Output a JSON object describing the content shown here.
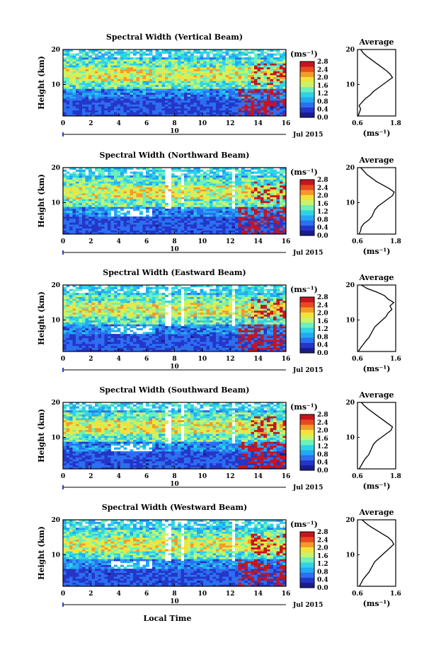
{
  "figure": {
    "xlabel": "Local Time",
    "date_label": "Jul 2015",
    "day_label": "10",
    "average_title": "Average",
    "colorbar_unit": "(ms⁻¹)",
    "colorbar_ticks": [
      "0.0",
      "0.4",
      "0.8",
      "1.2",
      "1.6",
      "2.0",
      "2.4",
      "2.8"
    ],
    "palette": [
      "#1b1b8f",
      "#2436c8",
      "#2c6ff0",
      "#22a9f4",
      "#2fd3e6",
      "#6ef0b8",
      "#c8f46a",
      "#f4e23a",
      "#f59a2a",
      "#e84a1e",
      "#c8141e"
    ]
  },
  "chart_data": [
    {
      "type": "heatmap",
      "title": "Spectral Width (Vertical Beam)",
      "ylabel": "Height (km)",
      "xlim": [
        0,
        16
      ],
      "ylim": [
        1,
        20
      ],
      "xticks": [
        "0",
        "2",
        "4",
        "6",
        "8",
        "10",
        "12",
        "14",
        "16"
      ],
      "yticks": [
        "10",
        "20"
      ],
      "colorbar": {
        "label": "(ms⁻¹)",
        "range": [
          0.0,
          2.8
        ],
        "ticks": [
          "0.0",
          "0.4",
          "0.8",
          "1.2",
          "1.6",
          "2.0",
          "2.4",
          "2.8"
        ]
      },
      "profile": {
        "title": "Average",
        "xlabel": "(ms⁻¹)",
        "xlim": [
          0.6,
          1.8
        ],
        "xticks": [
          "0.6",
          "1.8"
        ],
        "ylim": [
          1,
          20
        ],
        "yticks": [
          "10",
          "20"
        ],
        "height_km": [
          1,
          2,
          3,
          4,
          5,
          6,
          7,
          8,
          9,
          10,
          11,
          12,
          13,
          14,
          15,
          16,
          17,
          18,
          19,
          20
        ],
        "width": [
          0.62,
          0.66,
          0.7,
          0.65,
          0.75,
          0.85,
          1.0,
          1.1,
          1.25,
          1.4,
          1.55,
          1.7,
          1.62,
          1.5,
          1.35,
          1.2,
          1.05,
          0.9,
          0.78,
          0.7
        ]
      }
    },
    {
      "type": "heatmap",
      "title": "Spectral Width (Northward Beam)",
      "ylabel": "Height (km)",
      "xlim": [
        0,
        16
      ],
      "ylim": [
        1,
        20
      ],
      "xticks": [
        "0",
        "2",
        "4",
        "6",
        "8",
        "10",
        "12",
        "14",
        "16"
      ],
      "yticks": [
        "10",
        "20"
      ],
      "colorbar": {
        "label": "(ms⁻¹)",
        "range": [
          0.0,
          2.8
        ],
        "ticks": [
          "0.0",
          "0.4",
          "0.8",
          "1.2",
          "1.6",
          "2.0",
          "2.4",
          "2.8"
        ]
      },
      "profile": {
        "title": "Average",
        "xlabel": "(ms⁻¹)",
        "xlim": [
          0.6,
          1.8
        ],
        "xticks": [
          "0.6",
          "1.8"
        ],
        "ylim": [
          1,
          20
        ],
        "yticks": [
          "10",
          "20"
        ],
        "height_km": [
          1,
          2,
          3,
          4,
          5,
          6,
          7,
          8,
          9,
          10,
          11,
          12,
          13,
          14,
          15,
          16,
          17,
          18,
          19,
          20
        ],
        "width": [
          0.65,
          0.7,
          0.72,
          0.8,
          0.95,
          1.05,
          1.1,
          1.15,
          1.25,
          1.4,
          1.55,
          1.7,
          1.75,
          1.6,
          1.4,
          1.2,
          1.05,
          0.9,
          0.8,
          0.7
        ]
      }
    },
    {
      "type": "heatmap",
      "title": "Spectral Width (Eastward Beam)",
      "ylabel": "Height (km)",
      "xlim": [
        0,
        16
      ],
      "ylim": [
        1,
        20
      ],
      "xticks": [
        "0",
        "2",
        "4",
        "6",
        "8",
        "10",
        "12",
        "14",
        "16"
      ],
      "yticks": [
        "10",
        "20"
      ],
      "colorbar": {
        "label": "(ms⁻¹)",
        "range": [
          0.0,
          2.8
        ],
        "ticks": [
          "0.0",
          "0.4",
          "0.8",
          "1.2",
          "1.6",
          "2.0",
          "2.4",
          "2.8"
        ]
      },
      "profile": {
        "title": "Average",
        "xlabel": "(ms⁻¹)",
        "xlim": [
          0.6,
          1.6
        ],
        "xticks": [
          "0.6",
          "1.6"
        ],
        "ylim": [
          1,
          20
        ],
        "yticks": [
          "10",
          "20"
        ],
        "height_km": [
          1,
          2,
          3,
          4,
          5,
          6,
          7,
          8,
          9,
          10,
          11,
          12,
          13,
          14,
          15,
          16,
          17,
          18,
          19,
          20
        ],
        "width": [
          0.62,
          0.68,
          0.75,
          0.82,
          0.9,
          0.95,
          1.0,
          1.05,
          1.15,
          1.25,
          1.35,
          1.4,
          1.5,
          1.45,
          1.55,
          1.4,
          1.3,
          1.1,
          0.85,
          0.7
        ]
      }
    },
    {
      "type": "heatmap",
      "title": "Spectral Width (Southward Beam)",
      "ylabel": "Height (km)",
      "xlim": [
        0,
        16
      ],
      "ylim": [
        1,
        20
      ],
      "xticks": [
        "0",
        "2",
        "4",
        "6",
        "8",
        "10",
        "12",
        "14",
        "16"
      ],
      "yticks": [
        "10",
        "20"
      ],
      "colorbar": {
        "label": "(ms⁻¹)",
        "range": [
          0.0,
          2.8
        ],
        "ticks": [
          "0.0",
          "0.4",
          "0.8",
          "1.2",
          "1.6",
          "2.0",
          "2.4",
          "2.8"
        ]
      },
      "profile": {
        "title": "Average",
        "xlabel": "(ms⁻¹)",
        "xlim": [
          0.6,
          1.8
        ],
        "xticks": [
          "0.6",
          "1.8"
        ],
        "ylim": [
          1,
          20
        ],
        "yticks": [
          "10",
          "20"
        ],
        "height_km": [
          1,
          2,
          3,
          4,
          5,
          6,
          7,
          8,
          9,
          10,
          11,
          12,
          13,
          14,
          15,
          16,
          17,
          18,
          19,
          20
        ],
        "width": [
          0.65,
          0.72,
          0.78,
          0.85,
          0.95,
          1.0,
          1.05,
          1.1,
          1.2,
          1.35,
          1.5,
          1.65,
          1.7,
          1.55,
          1.4,
          1.25,
          1.1,
          0.95,
          0.82,
          0.72
        ]
      }
    },
    {
      "type": "heatmap",
      "title": "Spectral Width (Westward Beam)",
      "ylabel": "Height (km)",
      "xlim": [
        0,
        16
      ],
      "ylim": [
        1,
        20
      ],
      "xticks": [
        "0",
        "2",
        "4",
        "6",
        "8",
        "10",
        "12",
        "14",
        "16"
      ],
      "yticks": [
        "10",
        "20"
      ],
      "colorbar": {
        "label": "(ms⁻¹)",
        "range": [
          0.0,
          2.8
        ],
        "ticks": [
          "0.0",
          "0.4",
          "0.8",
          "1.2",
          "1.6",
          "2.0",
          "2.4",
          "2.8"
        ]
      },
      "profile": {
        "title": "Average",
        "xlabel": "(ms⁻¹)",
        "xlim": [
          0.6,
          1.6
        ],
        "xticks": [
          "0.6",
          "1.6"
        ],
        "ylim": [
          1,
          20
        ],
        "yticks": [
          "10",
          "20"
        ],
        "height_km": [
          1,
          2,
          3,
          4,
          5,
          6,
          7,
          8,
          9,
          10,
          11,
          12,
          13,
          14,
          15,
          16,
          17,
          18,
          19,
          20
        ],
        "width": [
          0.65,
          0.7,
          0.75,
          0.82,
          0.9,
          0.95,
          1.0,
          1.05,
          1.15,
          1.25,
          1.35,
          1.45,
          1.55,
          1.5,
          1.4,
          1.25,
          1.1,
          0.95,
          0.82,
          0.72
        ]
      }
    }
  ]
}
